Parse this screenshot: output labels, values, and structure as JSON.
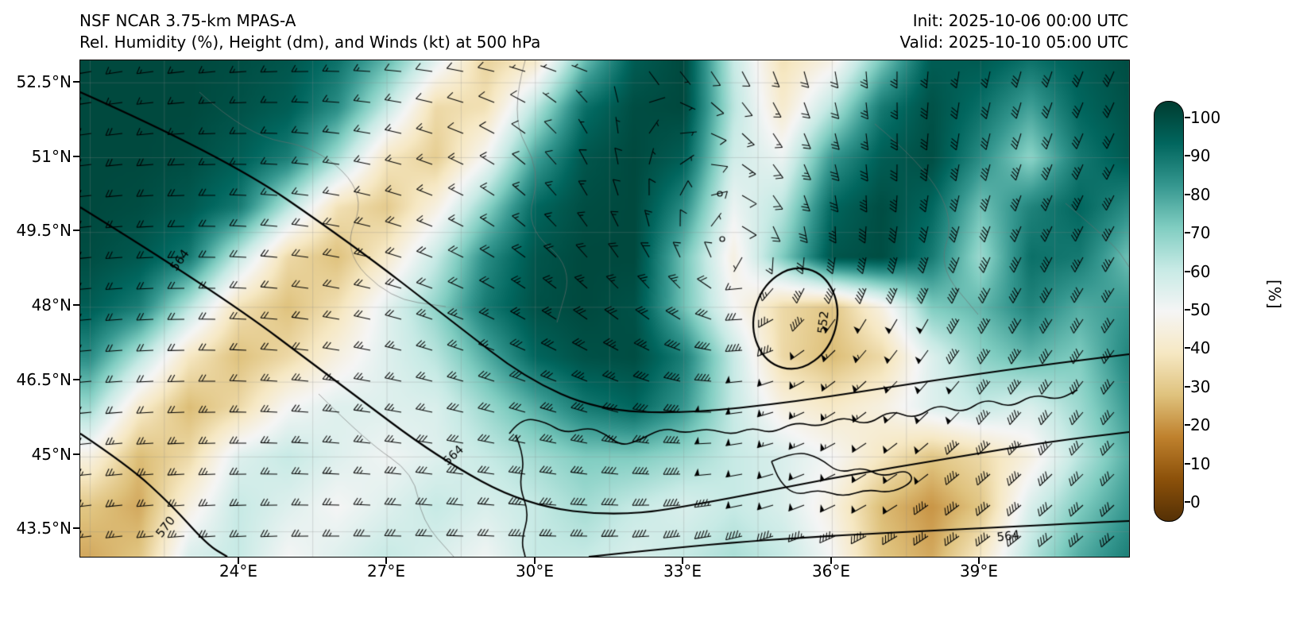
{
  "header": {
    "title": "NSF NCAR 3.75-km MPAS-A",
    "subtitle": "Rel. Humidity (%), Height (dm), and Winds (kt) at 500 hPa",
    "init_label": "Init: 2025-10-06 00:00 UTC",
    "valid_label": "Valid: 2025-10-10 05:00 UTC"
  },
  "axes": {
    "lat_ticks": [
      "52.5°N",
      "51°N",
      "49.5°N",
      "48°N",
      "46.5°N",
      "45°N",
      "43.5°N"
    ],
    "lon_ticks": [
      "24°E",
      "27°E",
      "30°E",
      "33°E",
      "36°E",
      "39°E"
    ]
  },
  "colorbar": {
    "label": "[%]",
    "ticks": [
      "100",
      "90",
      "80",
      "70",
      "60",
      "50",
      "40",
      "30",
      "20",
      "10",
      "0"
    ],
    "colors": [
      "#543005",
      "#8c510a",
      "#bf812d",
      "#dfc27d",
      "#f6e8c3",
      "#f5f5f5",
      "#c7eae5",
      "#80cdc1",
      "#35978f",
      "#01665e",
      "#003c30"
    ]
  },
  "chart_data": {
    "type": "heatmap",
    "field": "Relative Humidity",
    "units": "%",
    "level": "500 hPa",
    "model": "NSF NCAR 3.75-km MPAS-A",
    "init": "2025-10-06 00:00 UTC",
    "valid": "2025-10-10 05:00 UTC",
    "lon_range": [
      20.8,
      42.0
    ],
    "lat_range": [
      43.0,
      52.95
    ],
    "grid_lons": [
      21,
      22,
      23,
      24,
      25,
      26,
      27,
      28,
      29,
      30,
      31,
      32,
      33,
      34,
      35,
      36,
      37,
      38,
      39,
      40,
      41,
      42
    ],
    "grid_lats": [
      53,
      52,
      51,
      50,
      49,
      48,
      47,
      46,
      45,
      44,
      43
    ],
    "rh_values": [
      [
        97,
        97,
        97,
        96,
        94,
        88,
        75,
        55,
        34,
        40,
        72,
        92,
        97,
        60,
        38,
        46,
        70,
        92,
        93,
        88,
        92,
        96
      ],
      [
        97,
        97,
        97,
        95,
        92,
        82,
        60,
        36,
        38,
        62,
        88,
        96,
        97,
        62,
        42,
        62,
        86,
        95,
        88,
        78,
        90,
        95
      ],
      [
        97,
        97,
        96,
        92,
        85,
        65,
        40,
        33,
        50,
        78,
        94,
        97,
        92,
        58,
        52,
        80,
        92,
        96,
        82,
        68,
        86,
        93
      ],
      [
        97,
        96,
        93,
        86,
        62,
        38,
        32,
        46,
        68,
        90,
        96,
        97,
        82,
        52,
        62,
        90,
        96,
        90,
        72,
        84,
        90,
        82
      ],
      [
        96,
        93,
        86,
        60,
        36,
        30,
        42,
        60,
        82,
        94,
        97,
        97,
        72,
        46,
        70,
        94,
        96,
        86,
        66,
        88,
        86,
        72
      ],
      [
        92,
        85,
        62,
        38,
        30,
        38,
        54,
        68,
        86,
        95,
        97,
        95,
        72,
        50,
        36,
        31,
        46,
        70,
        74,
        84,
        76,
        80
      ],
      [
        82,
        62,
        40,
        30,
        36,
        46,
        55,
        62,
        76,
        90,
        95,
        96,
        85,
        60,
        36,
        29,
        36,
        55,
        68,
        74,
        70,
        84
      ],
      [
        66,
        42,
        29,
        36,
        50,
        55,
        55,
        56,
        66,
        76,
        86,
        90,
        80,
        60,
        46,
        41,
        46,
        55,
        60,
        56,
        66,
        80
      ],
      [
        46,
        29,
        36,
        55,
        60,
        55,
        51,
        55,
        60,
        65,
        70,
        70,
        66,
        60,
        56,
        50,
        40,
        31,
        36,
        46,
        62,
        76
      ],
      [
        31,
        26,
        46,
        60,
        55,
        50,
        55,
        60,
        56,
        60,
        65,
        60,
        56,
        60,
        56,
        46,
        29,
        23,
        31,
        56,
        70,
        80
      ],
      [
        26,
        31,
        56,
        60,
        50,
        55,
        60,
        56,
        51,
        60,
        60,
        56,
        60,
        64,
        60,
        50,
        31,
        26,
        41,
        62,
        76,
        85
      ]
    ],
    "height_contour_labels": [
      "564",
      "564",
      "552",
      "570",
      "564"
    ],
    "wind": {
      "type": "barbs",
      "units": "kt"
    }
  }
}
